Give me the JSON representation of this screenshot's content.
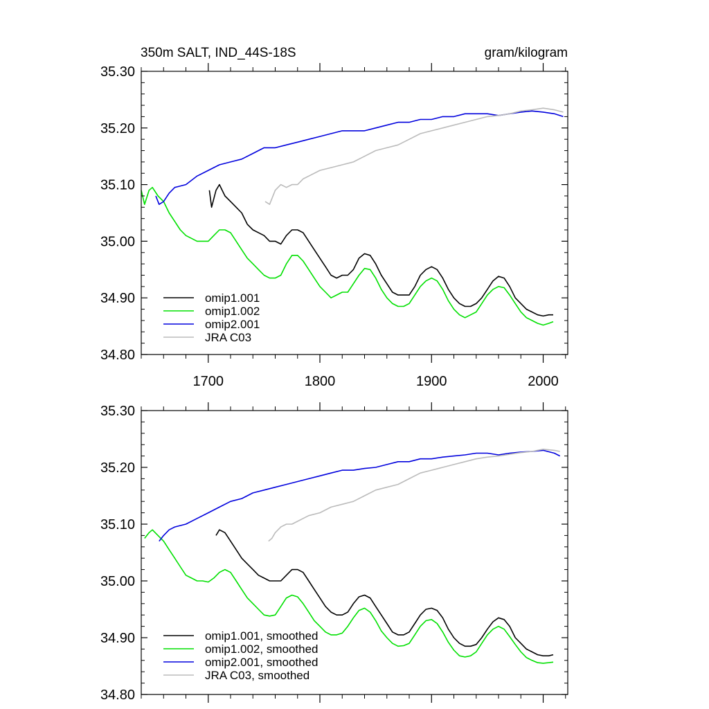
{
  "chart_data": [
    {
      "type": "line",
      "title": "350m SALT, IND_44S-18S",
      "units": "gram/kilogram",
      "xlim": [
        1640,
        2022
      ],
      "ylim": [
        34.8,
        35.3
      ],
      "x_ticks": [
        1700,
        1800,
        1900,
        2000
      ],
      "x_tick_labels": [
        "1700",
        "1800",
        "1900",
        "2000"
      ],
      "y_ticks": [
        34.8,
        34.9,
        35.0,
        35.1,
        35.2,
        35.3
      ],
      "y_tick_labels": [
        "34.80",
        "34.90",
        "35.00",
        "35.10",
        "35.20",
        "35.30"
      ],
      "legend_position": "bottom-left",
      "series": [
        {
          "name": "omip1.001",
          "color": "#000000",
          "x": [
            1701,
            1703,
            1707,
            1710,
            1715,
            1720,
            1725,
            1730,
            1735,
            1740,
            1745,
            1750,
            1755,
            1760,
            1765,
            1770,
            1775,
            1780,
            1785,
            1790,
            1795,
            1800,
            1805,
            1810,
            1815,
            1820,
            1825,
            1830,
            1835,
            1840,
            1845,
            1850,
            1855,
            1860,
            1865,
            1870,
            1875,
            1880,
            1885,
            1890,
            1895,
            1900,
            1905,
            1910,
            1915,
            1920,
            1925,
            1930,
            1935,
            1940,
            1945,
            1950,
            1955,
            1960,
            1965,
            1970,
            1975,
            1980,
            1985,
            1990,
            1995,
            2000,
            2005,
            2009
          ],
          "values": [
            35.09,
            35.06,
            35.09,
            35.1,
            35.08,
            35.07,
            35.06,
            35.05,
            35.03,
            35.02,
            35.015,
            35.01,
            35.0,
            35.0,
            34.995,
            35.01,
            35.02,
            35.02,
            35.015,
            35.0,
            34.985,
            34.97,
            34.955,
            34.94,
            34.935,
            34.94,
            34.94,
            34.95,
            34.97,
            34.978,
            34.975,
            34.96,
            34.94,
            34.925,
            34.91,
            34.905,
            34.905,
            34.905,
            34.92,
            34.94,
            34.95,
            34.955,
            34.95,
            34.935,
            34.915,
            34.9,
            34.89,
            34.885,
            34.885,
            34.89,
            34.9,
            34.915,
            34.93,
            34.938,
            34.935,
            34.92,
            34.9,
            34.89,
            34.88,
            34.875,
            34.87,
            34.868,
            34.87,
            34.87
          ]
        },
        {
          "name": "omip1.002",
          "color": "#00e000",
          "x": [
            1640,
            1643,
            1647,
            1650,
            1655,
            1660,
            1665,
            1670,
            1675,
            1680,
            1685,
            1690,
            1695,
            1700,
            1705,
            1710,
            1715,
            1720,
            1725,
            1730,
            1735,
            1740,
            1745,
            1750,
            1755,
            1760,
            1765,
            1770,
            1775,
            1780,
            1785,
            1790,
            1795,
            1800,
            1805,
            1810,
            1815,
            1820,
            1825,
            1830,
            1835,
            1840,
            1845,
            1850,
            1855,
            1860,
            1865,
            1870,
            1875,
            1880,
            1885,
            1890,
            1895,
            1900,
            1905,
            1910,
            1915,
            1920,
            1925,
            1930,
            1935,
            1940,
            1945,
            1950,
            1955,
            1960,
            1965,
            1970,
            1975,
            1980,
            1985,
            1990,
            1995,
            2000,
            2005,
            2009
          ],
          "values": [
            35.09,
            35.065,
            35.09,
            35.095,
            35.08,
            35.07,
            35.05,
            35.035,
            35.02,
            35.01,
            35.005,
            35.0,
            35.0,
            35.0,
            35.01,
            35.02,
            35.02,
            35.015,
            35.0,
            34.985,
            34.97,
            34.96,
            34.95,
            34.94,
            34.935,
            34.935,
            34.94,
            34.96,
            34.975,
            34.975,
            34.965,
            34.95,
            34.935,
            34.92,
            34.91,
            34.9,
            34.905,
            34.91,
            34.91,
            34.925,
            34.94,
            34.952,
            34.95,
            34.935,
            34.915,
            34.9,
            34.89,
            34.885,
            34.885,
            34.89,
            34.905,
            34.92,
            34.93,
            34.935,
            34.93,
            34.915,
            34.895,
            34.88,
            34.87,
            34.865,
            34.87,
            34.875,
            34.89,
            34.905,
            34.915,
            34.92,
            34.918,
            34.905,
            34.89,
            34.875,
            34.865,
            34.86,
            34.855,
            34.852,
            34.855,
            34.858
          ]
        },
        {
          "name": "omip2.001",
          "color": "#0000dd",
          "x": [
            1653,
            1656,
            1660,
            1665,
            1670,
            1680,
            1690,
            1700,
            1710,
            1720,
            1730,
            1740,
            1750,
            1760,
            1770,
            1780,
            1790,
            1800,
            1810,
            1820,
            1830,
            1840,
            1850,
            1860,
            1870,
            1880,
            1890,
            1900,
            1910,
            1920,
            1930,
            1940,
            1950,
            1960,
            1970,
            1980,
            1990,
            2000,
            2010,
            2018
          ],
          "values": [
            35.08,
            35.065,
            35.07,
            35.085,
            35.095,
            35.1,
            35.115,
            35.125,
            35.135,
            35.14,
            35.145,
            35.155,
            35.165,
            35.165,
            35.17,
            35.175,
            35.18,
            35.185,
            35.19,
            35.195,
            35.195,
            35.195,
            35.2,
            35.205,
            35.21,
            35.21,
            35.215,
            35.215,
            35.22,
            35.22,
            35.225,
            35.225,
            35.225,
            35.222,
            35.225,
            35.228,
            35.23,
            35.228,
            35.225,
            35.22
          ]
        },
        {
          "name": "JRA C03",
          "color": "#bbbbbb",
          "x": [
            1751,
            1755,
            1760,
            1765,
            1770,
            1775,
            1780,
            1785,
            1790,
            1800,
            1810,
            1820,
            1830,
            1840,
            1850,
            1860,
            1870,
            1880,
            1890,
            1900,
            1910,
            1920,
            1930,
            1940,
            1950,
            1960,
            1970,
            1980,
            1990,
            2000,
            2010,
            2018
          ],
          "values": [
            35.07,
            35.065,
            35.09,
            35.1,
            35.095,
            35.1,
            35.1,
            35.11,
            35.115,
            35.125,
            35.13,
            35.135,
            35.14,
            35.15,
            35.16,
            35.165,
            35.17,
            35.18,
            35.19,
            35.195,
            35.2,
            35.205,
            35.21,
            35.215,
            35.22,
            35.222,
            35.225,
            35.23,
            35.232,
            35.235,
            35.232,
            35.228
          ]
        }
      ]
    },
    {
      "type": "line",
      "title": "",
      "xlim": [
        1640,
        2022
      ],
      "ylim": [
        34.8,
        35.3
      ],
      "x_ticks": [
        1700,
        1800,
        1900,
        2000
      ],
      "y_ticks": [
        34.8,
        34.9,
        35.0,
        35.1,
        35.2,
        35.3
      ],
      "y_tick_labels": [
        "34.80",
        "34.90",
        "35.00",
        "35.10",
        "35.20",
        "35.30"
      ],
      "legend_position": "bottom-left",
      "series": [
        {
          "name": "omip1.001, smoothed",
          "color": "#000000",
          "x": [
            1707,
            1710,
            1715,
            1720,
            1725,
            1730,
            1735,
            1740,
            1745,
            1750,
            1755,
            1760,
            1765,
            1770,
            1775,
            1780,
            1785,
            1790,
            1795,
            1800,
            1805,
            1810,
            1815,
            1820,
            1825,
            1830,
            1835,
            1840,
            1845,
            1850,
            1855,
            1860,
            1865,
            1870,
            1875,
            1880,
            1885,
            1890,
            1895,
            1900,
            1905,
            1910,
            1915,
            1920,
            1925,
            1930,
            1935,
            1940,
            1945,
            1950,
            1955,
            1960,
            1965,
            1970,
            1975,
            1980,
            1985,
            1990,
            1995,
            2000,
            2005,
            2009
          ],
          "values": [
            35.08,
            35.09,
            35.085,
            35.07,
            35.055,
            35.04,
            35.03,
            35.02,
            35.01,
            35.005,
            35.0,
            35.0,
            35.0,
            35.01,
            35.02,
            35.02,
            35.015,
            35.0,
            34.985,
            34.97,
            34.955,
            34.945,
            34.94,
            34.94,
            34.945,
            34.96,
            34.972,
            34.975,
            34.97,
            34.955,
            34.94,
            34.925,
            34.91,
            34.905,
            34.905,
            34.91,
            34.925,
            34.94,
            34.95,
            34.952,
            34.948,
            34.935,
            34.915,
            34.9,
            34.89,
            34.885,
            34.885,
            34.888,
            34.9,
            34.915,
            34.928,
            34.935,
            34.932,
            34.92,
            34.9,
            34.89,
            34.88,
            34.875,
            34.87,
            34.868,
            34.868,
            34.87
          ]
        },
        {
          "name": "omip1.002, smoothed",
          "color": "#00e000",
          "x": [
            1643,
            1647,
            1650,
            1655,
            1660,
            1665,
            1670,
            1675,
            1680,
            1685,
            1690,
            1695,
            1700,
            1705,
            1710,
            1715,
            1720,
            1725,
            1730,
            1735,
            1740,
            1745,
            1750,
            1755,
            1760,
            1765,
            1770,
            1775,
            1780,
            1785,
            1790,
            1795,
            1800,
            1805,
            1810,
            1815,
            1820,
            1825,
            1830,
            1835,
            1840,
            1845,
            1850,
            1855,
            1860,
            1865,
            1870,
            1875,
            1880,
            1885,
            1890,
            1895,
            1900,
            1905,
            1910,
            1915,
            1920,
            1925,
            1930,
            1935,
            1940,
            1945,
            1950,
            1955,
            1960,
            1965,
            1970,
            1975,
            1980,
            1985,
            1990,
            1995,
            2000,
            2005,
            2009
          ],
          "values": [
            35.075,
            35.085,
            35.09,
            35.08,
            35.07,
            35.055,
            35.04,
            35.025,
            35.01,
            35.005,
            35.0,
            35.0,
            34.998,
            35.005,
            35.015,
            35.02,
            35.015,
            35.0,
            34.985,
            34.97,
            34.96,
            34.95,
            34.94,
            34.938,
            34.94,
            34.955,
            34.97,
            34.975,
            34.972,
            34.96,
            34.945,
            34.93,
            34.92,
            34.91,
            34.905,
            34.905,
            34.908,
            34.92,
            34.935,
            34.948,
            34.952,
            34.945,
            34.93,
            34.912,
            34.9,
            34.89,
            34.885,
            34.886,
            34.89,
            34.905,
            34.92,
            34.93,
            34.932,
            34.925,
            34.91,
            34.892,
            34.878,
            34.868,
            34.866,
            34.868,
            34.875,
            34.89,
            34.905,
            34.915,
            34.92,
            34.915,
            34.902,
            34.888,
            34.875,
            34.865,
            34.86,
            34.856,
            34.855,
            34.856,
            34.857
          ]
        },
        {
          "name": "omip2.001, smoothed",
          "color": "#0000dd",
          "x": [
            1656,
            1660,
            1665,
            1670,
            1680,
            1690,
            1700,
            1710,
            1720,
            1730,
            1740,
            1750,
            1760,
            1770,
            1780,
            1790,
            1800,
            1810,
            1820,
            1830,
            1840,
            1850,
            1860,
            1870,
            1880,
            1890,
            1900,
            1910,
            1920,
            1930,
            1940,
            1950,
            1960,
            1970,
            1980,
            1990,
            2000,
            2010,
            2015
          ],
          "values": [
            35.07,
            35.08,
            35.09,
            35.095,
            35.1,
            35.11,
            35.12,
            35.13,
            35.14,
            35.145,
            35.155,
            35.16,
            35.165,
            35.17,
            35.175,
            35.18,
            35.185,
            35.19,
            35.195,
            35.195,
            35.198,
            35.2,
            35.205,
            35.21,
            35.21,
            35.215,
            35.215,
            35.218,
            35.22,
            35.222,
            35.225,
            35.225,
            35.222,
            35.225,
            35.227,
            35.228,
            35.23,
            35.225,
            35.22
          ]
        },
        {
          "name": "JRA C03, smoothed",
          "color": "#bbbbbb",
          "x": [
            1754,
            1757,
            1760,
            1765,
            1770,
            1775,
            1780,
            1785,
            1790,
            1800,
            1810,
            1820,
            1830,
            1840,
            1850,
            1860,
            1870,
            1880,
            1890,
            1900,
            1910,
            1920,
            1930,
            1940,
            1950,
            1960,
            1970,
            1980,
            1990,
            2000,
            2010,
            2015
          ],
          "values": [
            35.07,
            35.075,
            35.085,
            35.095,
            35.1,
            35.1,
            35.105,
            35.11,
            35.115,
            35.12,
            35.13,
            35.135,
            35.14,
            35.15,
            35.16,
            35.165,
            35.17,
            35.18,
            35.19,
            35.195,
            35.2,
            35.205,
            35.21,
            35.215,
            35.218,
            35.22,
            35.223,
            35.226,
            35.228,
            35.232,
            35.23,
            35.228
          ]
        }
      ]
    }
  ]
}
